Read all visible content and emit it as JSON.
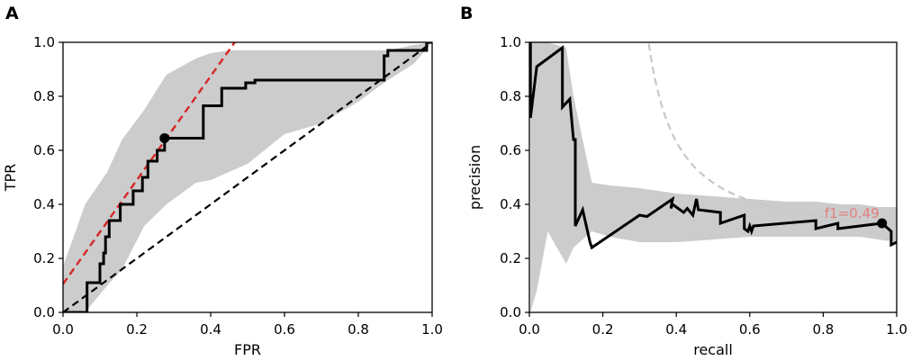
{
  "colors": {
    "curve": "#000000",
    "band": "#cccccc",
    "tangent": "#d62728",
    "chance": "#000000",
    "iso_f1": "#c8c8c8",
    "annotation": "#e08080"
  },
  "chart_data": [
    {
      "type": "line",
      "panel_label": "A",
      "xlabel": "FPR",
      "ylabel": "TPR",
      "xlim": [
        0.0,
        1.0
      ],
      "ylim": [
        0.0,
        1.0
      ],
      "xticks": [
        "0.0",
        "0.2",
        "0.4",
        "0.6",
        "0.8",
        "1.0"
      ],
      "yticks": [
        "0.0",
        "0.2",
        "0.4",
        "0.6",
        "0.8",
        "1.0"
      ],
      "grid": false,
      "series": [
        {
          "role": "roc-curve",
          "style": "solid",
          "x": [
            0,
            0.065,
            0.065,
            0.1,
            0.1,
            0.11,
            0.11,
            0.115,
            0.115,
            0.125,
            0.125,
            0.155,
            0.155,
            0.19,
            0.19,
            0.215,
            0.215,
            0.23,
            0.23,
            0.255,
            0.255,
            0.275,
            0.275,
            0.38,
            0.38,
            0.43,
            0.43,
            0.495,
            0.495,
            0.52,
            0.52,
            0.87,
            0.87,
            0.88,
            0.88,
            0.985,
            0.985,
            1.0
          ],
          "y": [
            0,
            0,
            0.11,
            0.11,
            0.18,
            0.18,
            0.22,
            0.22,
            0.28,
            0.28,
            0.34,
            0.34,
            0.4,
            0.4,
            0.45,
            0.45,
            0.5,
            0.5,
            0.56,
            0.56,
            0.6,
            0.6,
            0.645,
            0.645,
            0.765,
            0.765,
            0.83,
            0.83,
            0.85,
            0.85,
            0.86,
            0.86,
            0.95,
            0.95,
            0.97,
            0.97,
            1.0,
            1.0
          ]
        },
        {
          "role": "confidence-band",
          "style": "fill",
          "x": [
            0,
            0.06,
            0.12,
            0.16,
            0.22,
            0.28,
            0.36,
            0.4,
            0.45,
            0.5,
            0.6,
            0.7,
            0.8,
            0.88,
            0.95,
            1.0
          ],
          "upper": [
            0.17,
            0.4,
            0.52,
            0.64,
            0.75,
            0.88,
            0.94,
            0.96,
            0.97,
            0.97,
            0.97,
            0.97,
            0.97,
            0.97,
            0.99,
            1.0
          ],
          "lower": [
            0.0,
            0.0,
            0.1,
            0.16,
            0.32,
            0.4,
            0.48,
            0.49,
            0.52,
            0.55,
            0.66,
            0.7,
            0.78,
            0.86,
            0.92,
            1.0
          ]
        },
        {
          "role": "chance-diagonal",
          "style": "dashed",
          "x": [
            0,
            1
          ],
          "y": [
            0,
            1
          ]
        },
        {
          "role": "tangent-line",
          "style": "dashed",
          "x": [
            0,
            0.465
          ],
          "y": [
            0.105,
            1.0
          ]
        }
      ],
      "marker": {
        "x": 0.275,
        "y": 0.645
      }
    },
    {
      "type": "line",
      "panel_label": "B",
      "xlabel": "recall",
      "ylabel": "precision",
      "xlim": [
        0.0,
        1.0
      ],
      "ylim": [
        0.0,
        1.0
      ],
      "xticks": [
        "0.0",
        "0.2",
        "0.4",
        "0.6",
        "0.8",
        "1.0"
      ],
      "yticks": [
        "0.0",
        "0.2",
        "0.4",
        "0.6",
        "0.8",
        "1.0"
      ],
      "grid": false,
      "series": [
        {
          "role": "pr-curve",
          "style": "solid",
          "x": [
            0.003,
            0.003,
            0.02,
            0.09,
            0.09,
            0.11,
            0.12,
            0.125,
            0.125,
            0.145,
            0.165,
            0.17,
            0.17,
            0.3,
            0.32,
            0.39,
            0.385,
            0.39,
            0.42,
            0.43,
            0.445,
            0.455,
            0.46,
            0.52,
            0.52,
            0.585,
            0.585,
            0.595,
            0.6,
            0.605,
            0.61,
            0.78,
            0.78,
            0.84,
            0.84,
            0.96,
            0.96,
            0.985,
            0.985,
            1.0
          ],
          "y": [
            1.0,
            0.72,
            0.91,
            0.98,
            0.76,
            0.79,
            0.64,
            0.64,
            0.32,
            0.38,
            0.26,
            0.24,
            0.24,
            0.36,
            0.355,
            0.42,
            0.385,
            0.4,
            0.37,
            0.385,
            0.36,
            0.42,
            0.38,
            0.37,
            0.33,
            0.36,
            0.31,
            0.3,
            0.32,
            0.3,
            0.32,
            0.34,
            0.31,
            0.33,
            0.31,
            0.33,
            0.33,
            0.3,
            0.25,
            0.26
          ]
        },
        {
          "role": "confidence-band",
          "style": "fill",
          "x": [
            0.003,
            0.02,
            0.05,
            0.1,
            0.12,
            0.17,
            0.22,
            0.3,
            0.4,
            0.5,
            0.6,
            0.7,
            0.78,
            0.85,
            0.9,
            0.95,
            1.0
          ],
          "upper": [
            1.0,
            1.0,
            1.0,
            0.98,
            0.8,
            0.48,
            0.47,
            0.46,
            0.44,
            0.43,
            0.42,
            0.41,
            0.41,
            0.4,
            0.4,
            0.39,
            0.39
          ],
          "lower": [
            0.0,
            0.08,
            0.3,
            0.18,
            0.24,
            0.3,
            0.28,
            0.26,
            0.26,
            0.27,
            0.28,
            0.28,
            0.28,
            0.28,
            0.28,
            0.27,
            0.26
          ]
        },
        {
          "role": "iso-f1-curve",
          "style": "dashed",
          "f1": 0.49
        }
      ],
      "marker": {
        "x": 0.96,
        "y": 0.33
      },
      "annotation": "f1=0.49"
    }
  ]
}
